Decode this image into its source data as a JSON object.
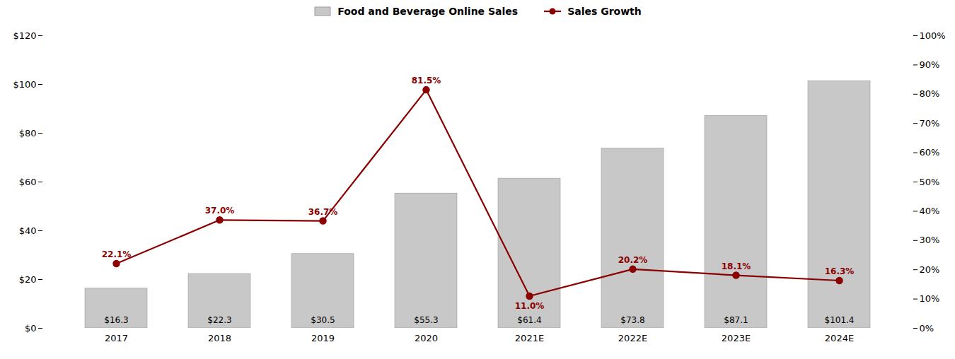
{
  "chart_data": {
    "type": "bar",
    "categories": [
      "2017",
      "2018",
      "2019",
      "2020",
      "2021E",
      "2022E",
      "2023E",
      "2024E"
    ],
    "series": [
      {
        "name": "Food and Beverage Online Sales",
        "type": "bar",
        "color": "#c8c8c8",
        "values": [
          16.3,
          22.3,
          30.5,
          55.3,
          61.4,
          73.8,
          87.1,
          101.4
        ],
        "value_labels": [
          "$16.3",
          "$22.3",
          "$30.5",
          "$55.3",
          "$61.4",
          "$73.8",
          "$87.1",
          "$101.4"
        ],
        "data_labels": true
      },
      {
        "name": "Sales Growth",
        "type": "line",
        "axis": "y2",
        "color": "#8b0000",
        "marker": "circle",
        "values": [
          22.1,
          37.0,
          36.7,
          81.5,
          11.0,
          20.2,
          18.1,
          16.3
        ],
        "value_labels": [
          "22.1%",
          "37.0%",
          "36.7%",
          "81.5%",
          "11.0%",
          "20.2%",
          "18.1%",
          "16.3%"
        ],
        "data_labels": true
      }
    ],
    "ylim": [
      0,
      120
    ],
    "yticks": [
      {
        "value": 0,
        "label": "$0"
      },
      {
        "value": 20,
        "label": "$20"
      },
      {
        "value": 40,
        "label": "$40"
      },
      {
        "value": 60,
        "label": "$60"
      },
      {
        "value": 80,
        "label": "$80"
      },
      {
        "value": 100,
        "label": "$100"
      },
      {
        "value": 120,
        "label": "$120"
      }
    ],
    "y2lim": [
      0,
      100
    ],
    "y2ticks": [
      {
        "value": 0,
        "label": "0%"
      },
      {
        "value": 10,
        "label": "10%"
      },
      {
        "value": 20,
        "label": "20%"
      },
      {
        "value": 30,
        "label": "30%"
      },
      {
        "value": 40,
        "label": "40%"
      },
      {
        "value": 50,
        "label": "50%"
      },
      {
        "value": 60,
        "label": "60%"
      },
      {
        "value": 70,
        "label": "70%"
      },
      {
        "value": 80,
        "label": "80%"
      },
      {
        "value": 90,
        "label": "90%"
      },
      {
        "value": 100,
        "label": "100%"
      }
    ],
    "grid": false,
    "legend": "top"
  }
}
